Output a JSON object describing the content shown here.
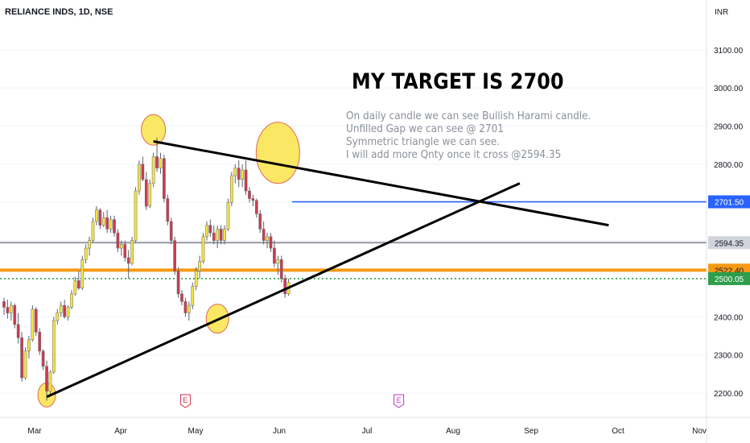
{
  "ticker_label": "RELIANCE INDS, 1D, NSE",
  "currency": "INR",
  "headline": "MY TARGET IS 2700",
  "notes": [
    "On daily candle we can see Bullish Harami candle.",
    "Unfilled Gap we can see @ 2701",
    "Symmetric triangle we can see.",
    "I will add more Qnty once it cross @2594.35"
  ],
  "colors": {
    "up": "#f5e43c",
    "down": "#cc3a4c",
    "wick": "#5d606b",
    "target_line": "#2962ff",
    "resistance_line": "#9598a1",
    "support_line": "#f59a15",
    "last_price": "#2e9e4b",
    "highlight": "#f9e449",
    "earnings": "#d32f4f",
    "dividend": "#c832c8"
  },
  "chart_data": {
    "type": "candlestick",
    "y_axis": {
      "ticks": [
        2200,
        2300,
        2400,
        2500,
        2600,
        2700,
        2800,
        2900,
        3000,
        3100
      ],
      "tick_labels": [
        "2200.00",
        "2300.00",
        "2400.00",
        "2500.00",
        "2600.00",
        "2700.00",
        "2800.00",
        "2900.00",
        "3000.00",
        "3100.00"
      ],
      "range": [
        2145,
        3220
      ]
    },
    "x_axis": {
      "labels": [
        "Mar",
        "Apr",
        "May",
        "Jun",
        "Jul",
        "Aug",
        "Sep",
        "Oct",
        "Nov"
      ]
    },
    "ohlc": [
      [
        2440,
        2450,
        2405,
        2425
      ],
      [
        2425,
        2445,
        2395,
        2410
      ],
      [
        2410,
        2440,
        2390,
        2430
      ],
      [
        2430,
        2435,
        2370,
        2380
      ],
      [
        2380,
        2410,
        2330,
        2345
      ],
      [
        2345,
        2360,
        2230,
        2240
      ],
      [
        2240,
        2320,
        2235,
        2310
      ],
      [
        2310,
        2350,
        2290,
        2340
      ],
      [
        2340,
        2430,
        2335,
        2420
      ],
      [
        2420,
        2425,
        2350,
        2360
      ],
      [
        2360,
        2370,
        2300,
        2310
      ],
      [
        2310,
        2315,
        2260,
        2270
      ],
      [
        2270,
        2285,
        2180,
        2205
      ],
      [
        2205,
        2260,
        2195,
        2255
      ],
      [
        2255,
        2400,
        2250,
        2390
      ],
      [
        2390,
        2420,
        2380,
        2410
      ],
      [
        2410,
        2440,
        2400,
        2430
      ],
      [
        2430,
        2445,
        2395,
        2400
      ],
      [
        2400,
        2430,
        2390,
        2425
      ],
      [
        2425,
        2470,
        2420,
        2460
      ],
      [
        2460,
        2505,
        2455,
        2495
      ],
      [
        2495,
        2520,
        2470,
        2475
      ],
      [
        2475,
        2560,
        2470,
        2550
      ],
      [
        2550,
        2590,
        2540,
        2580
      ],
      [
        2580,
        2610,
        2560,
        2600
      ],
      [
        2600,
        2660,
        2595,
        2650
      ],
      [
        2650,
        2690,
        2640,
        2680
      ],
      [
        2680,
        2685,
        2630,
        2640
      ],
      [
        2640,
        2675,
        2635,
        2660
      ],
      [
        2660,
        2680,
        2620,
        2630
      ],
      [
        2630,
        2665,
        2620,
        2655
      ],
      [
        2655,
        2665,
        2610,
        2620
      ],
      [
        2620,
        2630,
        2570,
        2580
      ],
      [
        2580,
        2600,
        2560,
        2590
      ],
      [
        2590,
        2600,
        2545,
        2555
      ],
      [
        2555,
        2575,
        2500,
        2540
      ],
      [
        2540,
        2610,
        2535,
        2600
      ],
      [
        2600,
        2740,
        2595,
        2730
      ],
      [
        2730,
        2810,
        2720,
        2800
      ],
      [
        2800,
        2820,
        2755,
        2760
      ],
      [
        2760,
        2780,
        2680,
        2690
      ],
      [
        2690,
        2760,
        2685,
        2750
      ],
      [
        2750,
        2830,
        2740,
        2820
      ],
      [
        2820,
        2870,
        2780,
        2790
      ],
      [
        2790,
        2830,
        2775,
        2815
      ],
      [
        2815,
        2825,
        2700,
        2710
      ],
      [
        2710,
        2720,
        2640,
        2650
      ],
      [
        2650,
        2660,
        2590,
        2600
      ],
      [
        2600,
        2610,
        2510,
        2520
      ],
      [
        2520,
        2530,
        2450,
        2460
      ],
      [
        2460,
        2470,
        2430,
        2440
      ],
      [
        2440,
        2450,
        2400,
        2410
      ],
      [
        2410,
        2440,
        2390,
        2430
      ],
      [
        2430,
        2490,
        2420,
        2480
      ],
      [
        2480,
        2530,
        2470,
        2520
      ],
      [
        2520,
        2560,
        2500,
        2545
      ],
      [
        2545,
        2620,
        2540,
        2610
      ],
      [
        2610,
        2650,
        2600,
        2640
      ],
      [
        2640,
        2655,
        2610,
        2620
      ],
      [
        2620,
        2640,
        2590,
        2600
      ],
      [
        2600,
        2640,
        2580,
        2630
      ],
      [
        2630,
        2640,
        2590,
        2600
      ],
      [
        2600,
        2640,
        2590,
        2630
      ],
      [
        2630,
        2710,
        2625,
        2700
      ],
      [
        2700,
        2780,
        2690,
        2770
      ],
      [
        2770,
        2800,
        2750,
        2790
      ],
      [
        2790,
        2810,
        2740,
        2760
      ],
      [
        2760,
        2800,
        2740,
        2785
      ],
      [
        2785,
        2810,
        2720,
        2730
      ],
      [
        2730,
        2740,
        2700,
        2710
      ],
      [
        2710,
        2720,
        2690,
        2705
      ],
      [
        2705,
        2710,
        2660,
        2670
      ],
      [
        2670,
        2680,
        2620,
        2630
      ],
      [
        2630,
        2650,
        2590,
        2600
      ],
      [
        2600,
        2620,
        2580,
        2610
      ],
      [
        2610,
        2620,
        2570,
        2580
      ],
      [
        2580,
        2600,
        2530,
        2540
      ],
      [
        2540,
        2560,
        2510,
        2550
      ],
      [
        2550,
        2560,
        2490,
        2500
      ],
      [
        2500,
        2510,
        2450,
        2460
      ],
      [
        2460,
        2500,
        2455,
        2490
      ]
    ],
    "price_lines": [
      {
        "value": 2701.5,
        "label": "2701.50",
        "color": "#2962ff",
        "style": "solid"
      },
      {
        "value": 2594.35,
        "label": "2594.35",
        "color": "#9598a1",
        "style": "solid"
      },
      {
        "value": 2522.4,
        "label": "2522.40",
        "color": "#f59a15",
        "style": "solid"
      },
      {
        "value": 2500.05,
        "label": "2500.05",
        "color": "#2e9e4b",
        "style": "dotted"
      }
    ],
    "event_markers": [
      {
        "label": "E",
        "bar": 51
      },
      {
        "label": "E",
        "bar": 111
      }
    ],
    "trendlines": [
      {
        "from": {
          "bar": 12,
          "price": 2190
        },
        "to": {
          "bar": 145,
          "price": 2750
        }
      },
      {
        "from": {
          "bar": 42,
          "price": 2860
        },
        "to": {
          "bar": 170,
          "price": 2640
        }
      }
    ],
    "highlight_circles": [
      {
        "bar": 12,
        "price": 2195
      },
      {
        "bar": 42,
        "price": 2890
      },
      {
        "bar": 60,
        "price": 2395
      },
      {
        "bar": 77,
        "price": 2830
      }
    ],
    "highlight_segments": [
      {
        "from": {
          "bar": 81,
          "price": 2701.5
        },
        "to": {
          "bar": 187,
          "price": 2701.5
        },
        "color": "#2962ff"
      }
    ]
  }
}
